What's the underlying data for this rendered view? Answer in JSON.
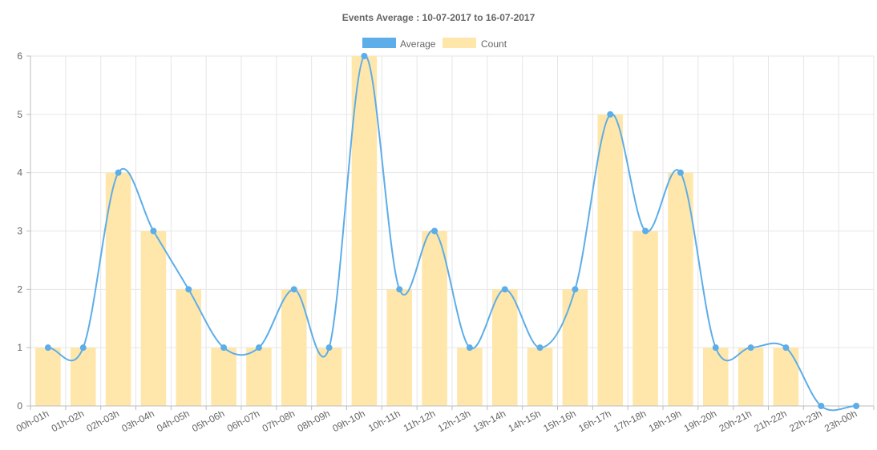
{
  "chart_data": {
    "type": "bar",
    "title": "Events Average : 10-07-2017 to 16-07-2017",
    "categories": [
      "00h-01h",
      "01h-02h",
      "02h-03h",
      "03h-04h",
      "04h-05h",
      "05h-06h",
      "06h-07h",
      "07h-08h",
      "08h-09h",
      "09h-10h",
      "10h-11h",
      "11h-12h",
      "12h-13h",
      "13h-14h",
      "14h-15h",
      "15h-16h",
      "16h-17h",
      "17h-18h",
      "18h-19h",
      "19h-20h",
      "20h-21h",
      "21h-22h",
      "22h-23h",
      "23h-00h"
    ],
    "series": [
      {
        "name": "Average",
        "type": "line",
        "smooth": true,
        "color": "#5DADE8",
        "values": [
          1,
          1,
          4,
          3,
          2,
          1,
          1,
          2,
          1,
          6,
          2,
          3,
          1,
          2,
          1,
          2,
          5,
          3,
          4,
          1,
          1,
          1,
          0,
          0
        ]
      },
      {
        "name": "Count",
        "type": "bar",
        "color": "#FFE7AC",
        "values": [
          1,
          1,
          4,
          3,
          2,
          1,
          1,
          2,
          1,
          6,
          2,
          3,
          1,
          2,
          1,
          2,
          5,
          3,
          4,
          1,
          1,
          1,
          0,
          0
        ]
      }
    ],
    "ylim": [
      0,
      6
    ],
    "yticks": [
      0,
      1,
      2,
      3,
      4,
      5,
      6
    ],
    "xlabel": "",
    "ylabel": "",
    "grid": true,
    "legend_position": "top-center"
  }
}
